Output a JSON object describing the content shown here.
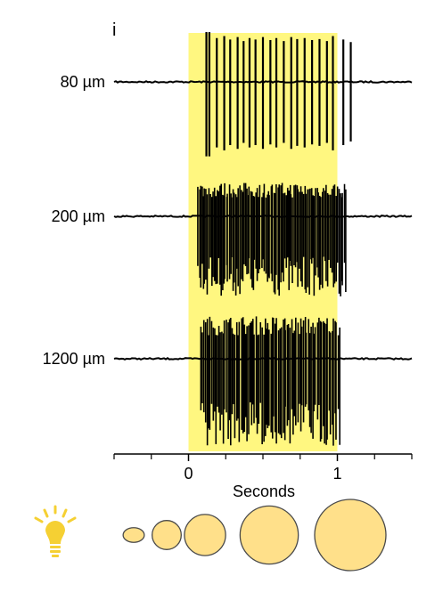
{
  "panel_label": "i",
  "chart_data": {
    "type": "line",
    "title": "",
    "xlabel": "Seconds",
    "ylabel": "",
    "xlim": [
      -0.5,
      1.5
    ],
    "xticks": [
      0,
      1
    ],
    "tick_labels": [
      "0",
      "1"
    ],
    "grid": false,
    "light_stimulus": {
      "start": 0,
      "end": 1,
      "color": "#fff780"
    },
    "series": [
      {
        "name": "80 µm",
        "baseline_offset": 0,
        "spike_times": [
          0.12,
          0.14,
          0.19,
          0.24,
          0.28,
          0.33,
          0.37,
          0.41,
          0.45,
          0.5,
          0.55,
          0.59,
          0.64,
          0.69,
          0.73,
          0.78,
          0.83,
          0.88,
          0.93,
          0.97,
          1.04,
          1.09
        ],
        "spike_heights": [
          1.0,
          1.0,
          0.88,
          0.92,
          0.85,
          0.9,
          0.82,
          0.88,
          0.85,
          0.9,
          0.84,
          0.88,
          0.82,
          0.9,
          0.86,
          0.88,
          0.84,
          0.86,
          0.82,
          0.92,
          0.85,
          0.8
        ]
      },
      {
        "name": "200 µm",
        "baseline_offset": 0,
        "burst_start": 0.06,
        "burst_end": 1.06,
        "burst_rate_hz": 110
      },
      {
        "name": "1200 µm",
        "baseline_offset": 0,
        "burst_start": 0.08,
        "burst_end": 1.02,
        "burst_rate_hz": 100
      }
    ]
  },
  "legend": {
    "icon": "lightbulb-icon",
    "icon_color": "#f5d033",
    "spot_fill": "#ffe08a",
    "spot_stroke": "#4a4a4a",
    "spot_sizes_um": [
      80,
      200,
      400,
      800,
      1200
    ]
  }
}
